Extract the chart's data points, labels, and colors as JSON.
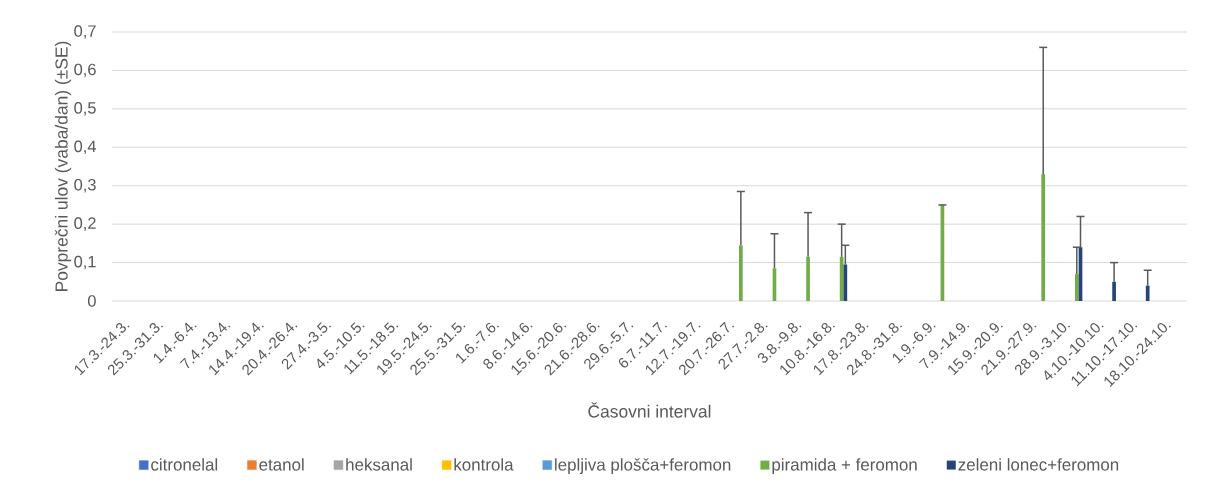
{
  "chart_data": {
    "type": "bar",
    "xlabel": "Časovni interval",
    "ylabel": "Povprečni ulov (vaba/dan) (±SE)",
    "categories": [
      "17.3.-24.3.",
      "25.3.-31.3.",
      "1.4.-6.4.",
      "7.4.-13.4.",
      "14.4.-19.4.",
      "20.4.-26.4.",
      "27.4.-3.5.",
      "4.5.-10.5.",
      "11.5.-18.5.",
      "19.5.-24.5.",
      "25.5.-31.5.",
      "1.6.-7.6.",
      "8.6.-14.6.",
      "15.6.-20.6.",
      "21.6.-28.6.",
      "29.6.-5.7.",
      "6.7.-11.7.",
      "12.7.-19.7.",
      "20.7.-26.7.",
      "27.7.-2.8.",
      "3.8.-9.8.",
      "10.8.-16.8.",
      "17.8.-23.8.",
      "24.8.-31.8.",
      "1.9.-6.9.",
      "7.9.-14.9.",
      "15.9.-20.9.",
      "21.9.-27.9.",
      "28.9.-3.10.",
      "4.10.-10.10.",
      "11.10.-17.10.",
      "18.10.-24.10."
    ],
    "series": [
      {
        "name": "citronelal",
        "color": "#4472c4",
        "values": [
          0,
          0,
          0,
          0,
          0,
          0,
          0,
          0,
          0,
          0,
          0,
          0,
          0,
          0,
          0,
          0,
          0,
          0,
          0,
          0,
          0,
          0,
          0,
          0,
          0,
          0,
          0,
          0,
          0,
          0,
          0,
          0
        ]
      },
      {
        "name": "etanol",
        "color": "#ed7d31",
        "values": [
          0,
          0,
          0,
          0,
          0,
          0,
          0,
          0,
          0,
          0,
          0,
          0,
          0,
          0,
          0,
          0,
          0,
          0,
          0,
          0,
          0,
          0,
          0,
          0,
          0,
          0,
          0,
          0,
          0,
          0,
          0,
          0
        ]
      },
      {
        "name": "heksanal",
        "color": "#a5a5a5",
        "values": [
          0,
          0,
          0,
          0,
          0,
          0,
          0,
          0,
          0,
          0,
          0,
          0,
          0,
          0,
          0,
          0,
          0,
          0,
          0,
          0,
          0,
          0,
          0,
          0,
          0,
          0,
          0,
          0,
          0,
          0,
          0,
          0
        ]
      },
      {
        "name": "kontrola",
        "color": "#ffc000",
        "values": [
          0,
          0,
          0,
          0,
          0,
          0,
          0,
          0,
          0,
          0,
          0,
          0,
          0,
          0,
          0,
          0,
          0,
          0,
          0,
          0,
          0,
          0,
          0,
          0,
          0,
          0,
          0,
          0,
          0,
          0,
          0,
          0
        ]
      },
      {
        "name": "lepljiva plošča+feromon",
        "color": "#5b9bd5",
        "values": [
          0,
          0,
          0,
          0,
          0,
          0,
          0,
          0,
          0,
          0,
          0,
          0,
          0,
          0,
          0,
          0,
          0,
          0,
          0,
          0,
          0,
          0,
          0,
          0,
          0,
          0,
          0,
          0,
          0,
          0,
          0,
          0
        ]
      },
      {
        "name": "piramida + feromon",
        "color": "#70ad47",
        "values": [
          0,
          0,
          0,
          0,
          0,
          0,
          0,
          0,
          0,
          0,
          0,
          0,
          0,
          0,
          0,
          0,
          0,
          0,
          0.145,
          0.085,
          0.115,
          0.115,
          0,
          0,
          0.25,
          0,
          0,
          0.33,
          0.07,
          0,
          0,
          0
        ],
        "errors": [
          null,
          null,
          null,
          null,
          null,
          null,
          null,
          null,
          null,
          null,
          null,
          null,
          null,
          null,
          null,
          null,
          null,
          null,
          [
            0.145,
            0.285
          ],
          [
            0.085,
            0.175
          ],
          [
            0.115,
            0.23
          ],
          [
            0.115,
            0.2
          ],
          null,
          null,
          [
            0.25,
            0.25
          ],
          null,
          null,
          [
            0.33,
            0.66
          ],
          [
            0.07,
            0.14
          ],
          null,
          null,
          null
        ]
      },
      {
        "name": "zeleni lonec+feromon",
        "color": "#264478",
        "values": [
          0,
          0,
          0,
          0,
          0,
          0,
          0,
          0,
          0,
          0,
          0,
          0,
          0,
          0,
          0,
          0,
          0,
          0,
          0,
          0,
          0,
          0.095,
          0,
          0,
          0,
          0,
          0,
          0,
          0.14,
          0.05,
          0.04,
          0
        ],
        "errors": [
          null,
          null,
          null,
          null,
          null,
          null,
          null,
          null,
          null,
          null,
          null,
          null,
          null,
          null,
          null,
          null,
          null,
          null,
          null,
          null,
          null,
          [
            0.095,
            0.145
          ],
          null,
          null,
          null,
          null,
          null,
          null,
          [
            0.14,
            0.22
          ],
          [
            0.05,
            0.1
          ],
          [
            0.04,
            0.08
          ],
          null
        ]
      }
    ],
    "ylim": [
      0,
      0.7
    ],
    "yticks": [
      0,
      {
        "value": 0.1,
        "label": "0,1"
      },
      {
        "value": 0.2,
        "label": "0,2"
      },
      {
        "value": 0.3,
        "label": "0,3"
      },
      {
        "value": 0.4,
        "label": "0,4"
      },
      {
        "value": 0.5,
        "label": "0,5"
      },
      {
        "value": 0.6,
        "label": "0,6"
      },
      {
        "value": 0.7,
        "label": "0,7"
      }
    ],
    "grid": "y",
    "legend": "bottom"
  }
}
